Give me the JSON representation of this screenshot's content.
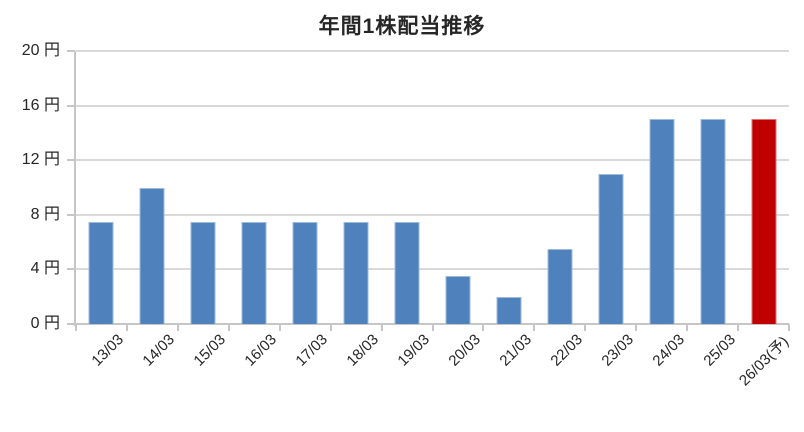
{
  "chart_data": {
    "type": "bar",
    "title": "年間1株配当推移",
    "categories": [
      "13/03",
      "14/03",
      "15/03",
      "16/03",
      "17/03",
      "18/03",
      "19/03",
      "20/03",
      "21/03",
      "22/03",
      "23/03",
      "24/03",
      "25/03",
      "26/03(予)"
    ],
    "values": [
      7.5,
      10,
      7.5,
      7.5,
      7.5,
      7.5,
      7.5,
      3.5,
      2,
      5.5,
      11,
      15,
      15,
      15
    ],
    "unit": "円",
    "ylim": [
      0,
      20
    ],
    "ytick_step": 4,
    "ytick_labels": [
      "0 円",
      "4 円",
      "8 円",
      "12 円",
      "16 円",
      "20 円"
    ],
    "legend": "none",
    "grid": true,
    "highlight_index": 13,
    "colors": {
      "bar": "#4F81BD",
      "highlight": "#C00000",
      "gridline": "#D9D9D9",
      "axis": "#C6C6C6",
      "text": "#262626"
    }
  }
}
